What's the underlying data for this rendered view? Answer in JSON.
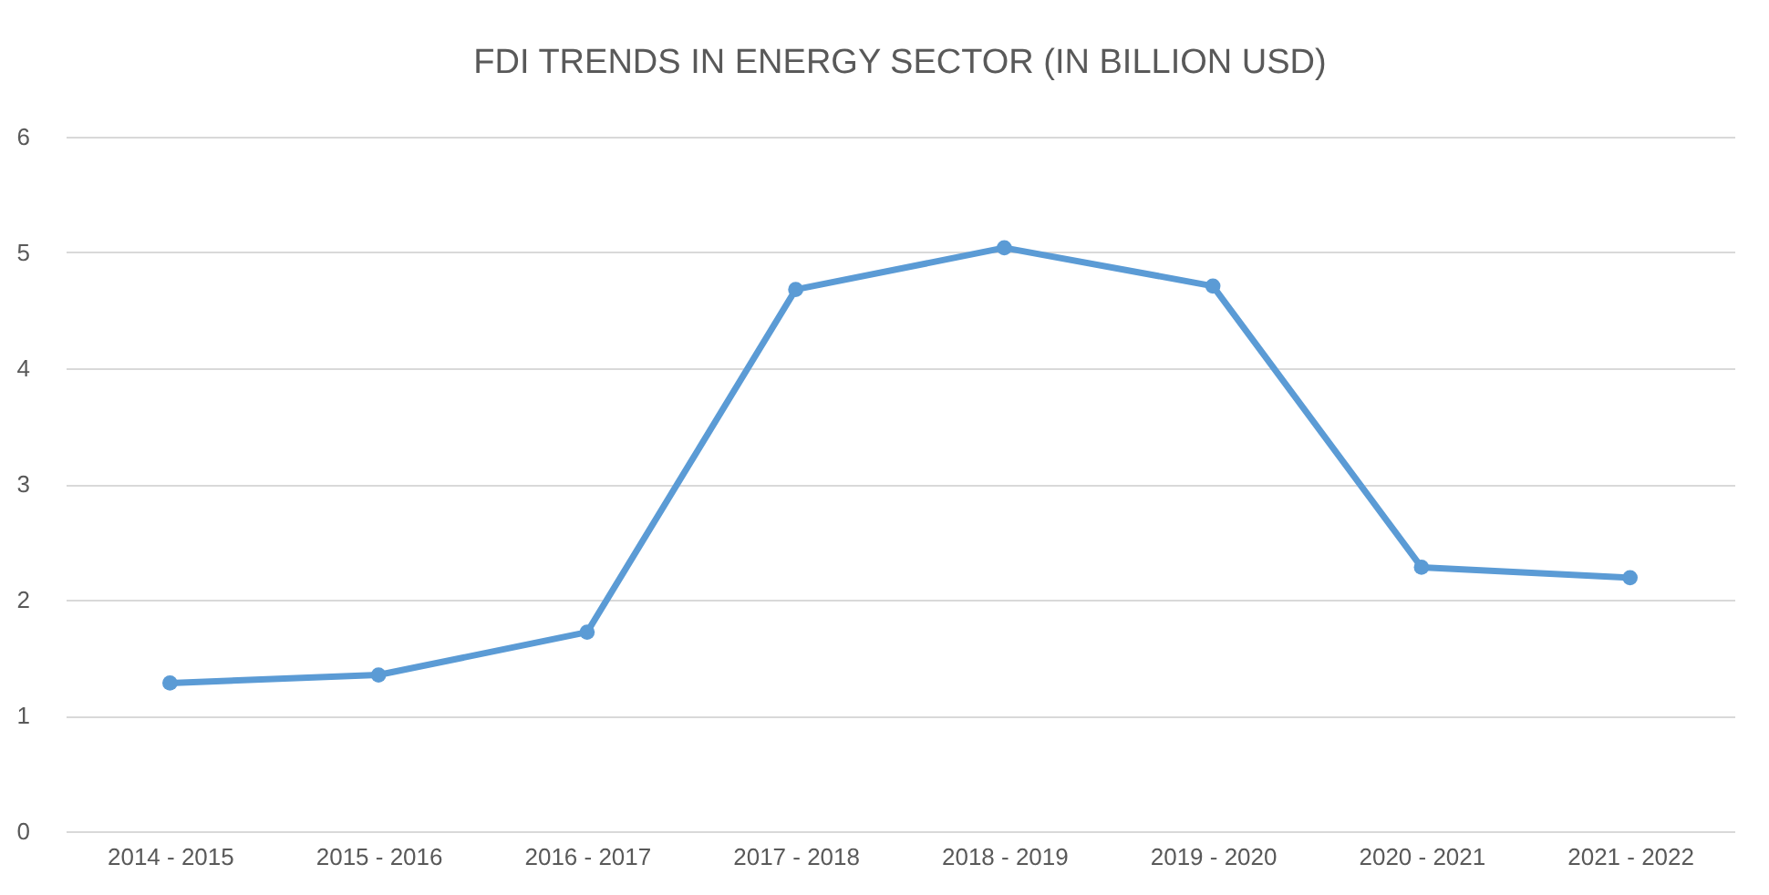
{
  "chart_data": {
    "type": "line",
    "title": "FDI TRENDS IN ENERGY SECTOR (IN BILLION USD)",
    "categories": [
      "2014 - 2015",
      "2015 - 2016",
      "2016 - 2017",
      "2017 - 2018",
      "2018 - 2019",
      "2019 - 2020",
      "2020 - 2021",
      "2021 - 2022"
    ],
    "series": [
      {
        "color": "#5b9bd5",
        "values": [
          1.28,
          1.35,
          1.72,
          4.68,
          5.04,
          4.71,
          2.28,
          2.19
        ]
      }
    ],
    "ylim": [
      0,
      6
    ],
    "yticks": [
      0,
      1,
      2,
      3,
      4,
      5,
      6
    ],
    "grid": "y",
    "marker": "circle"
  }
}
